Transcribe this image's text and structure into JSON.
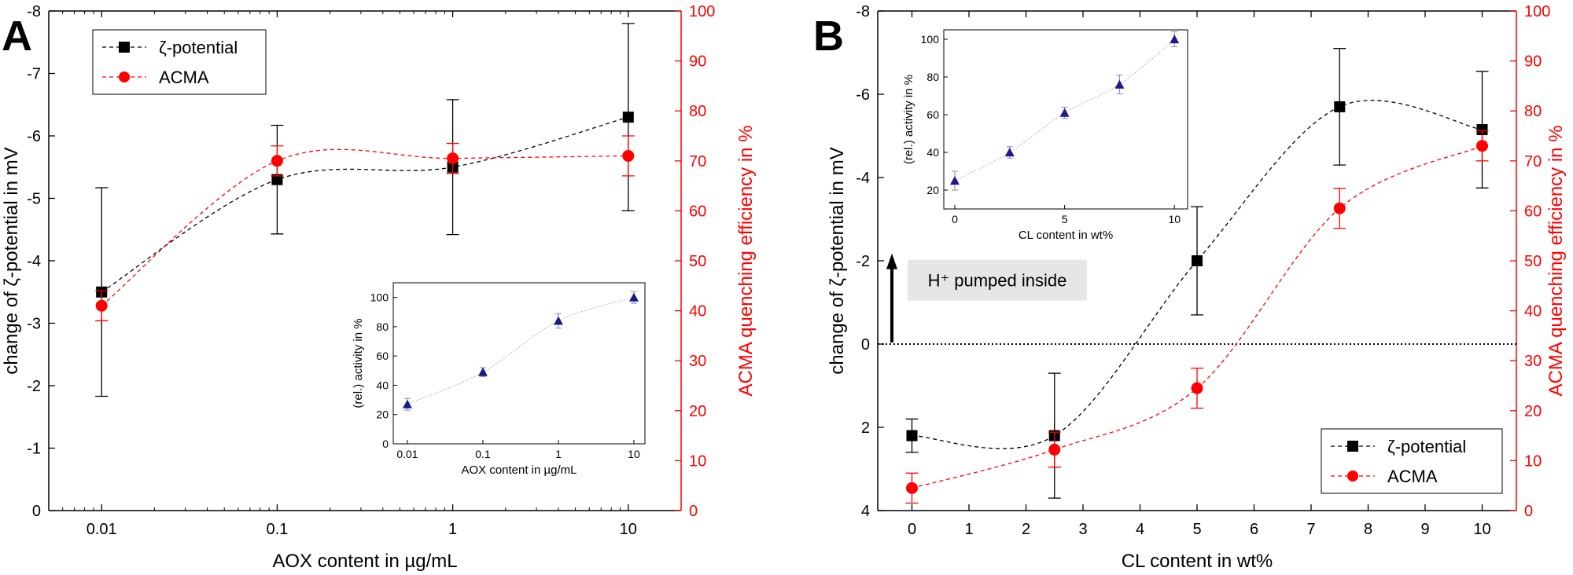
{
  "colors": {
    "zeta": "#000000",
    "acma": "#ff0000",
    "inset": "#1a1a8c",
    "arrow_box": "#e6e6e6"
  },
  "panels": [
    {
      "id": "A",
      "letter": "A",
      "xlabel": "AOX content in µg/mL",
      "y1label": "change of ζ-potential in mV",
      "y2label": "ACMA quenching efficiency in %",
      "legend": {
        "position": "top-left",
        "zeta_label": "ζ-potential",
        "acma_label": "ACMA"
      }
    },
    {
      "id": "B",
      "letter": "B",
      "xlabel": "CL content in wt%",
      "y1label": "change of ζ-potential in mV",
      "y2label": "ACMA quenching efficiency in %",
      "legend": {
        "position": "bottom-right",
        "zeta_label": "ζ-potential",
        "acma_label": "ACMA"
      },
      "annotation": "H⁺ pumped inside"
    }
  ],
  "chart_data": [
    {
      "panel": "A",
      "type": "scatter",
      "x_scale": "log",
      "xlim": [
        0.005,
        20
      ],
      "xticks": [
        "0.01",
        "0.1",
        "1",
        "10"
      ],
      "y1lim": [
        0,
        -8
      ],
      "y1ticks": [
        "0",
        "-1",
        "-2",
        "-3",
        "-4",
        "-5",
        "-6",
        "-7",
        "-8"
      ],
      "y2lim": [
        0,
        100
      ],
      "y2ticks": [
        "0",
        "10",
        "20",
        "30",
        "40",
        "50",
        "60",
        "70",
        "80",
        "90",
        "100"
      ],
      "series": [
        {
          "name": "ζ-potential",
          "axis": "left",
          "marker": "square",
          "x": [
            0.01,
            0.1,
            1,
            10
          ],
          "y": [
            -3.5,
            -5.3,
            -5.5,
            -6.3
          ],
          "err": [
            1.67,
            0.87,
            1.08,
            1.5
          ]
        },
        {
          "name": "ACMA",
          "axis": "right",
          "marker": "circle",
          "x": [
            0.01,
            0.1,
            1,
            10
          ],
          "y": [
            41,
            70,
            70.5,
            71
          ],
          "err": [
            3,
            3,
            3,
            4
          ]
        }
      ],
      "inset": {
        "xlabel": "AOX content in µg/mL",
        "ylabel": "(rel.) activity in %",
        "x_scale": "log",
        "xticks": [
          "0.01",
          "0.1",
          "1",
          "10"
        ],
        "yticks": [
          "0",
          "20",
          "40",
          "60",
          "80",
          "100"
        ],
        "ylim": [
          0,
          110
        ],
        "x": [
          0.01,
          0.1,
          1,
          10
        ],
        "y": [
          27,
          49,
          84,
          100
        ],
        "err": [
          4,
          3,
          5,
          4
        ]
      }
    },
    {
      "panel": "B",
      "type": "scatter",
      "x_scale": "linear",
      "xlim": [
        -0.6,
        10.6
      ],
      "xticks": [
        "0",
        "1",
        "2",
        "3",
        "4",
        "5",
        "6",
        "7",
        "8",
        "9",
        "10"
      ],
      "y1lim": [
        4,
        -8
      ],
      "y1ticks": [
        "4",
        "2",
        "0",
        "-2",
        "-4",
        "-6",
        "-8"
      ],
      "y2lim": [
        0,
        100
      ],
      "y2ticks": [
        "0",
        "10",
        "20",
        "30",
        "40",
        "50",
        "60",
        "70",
        "80",
        "90",
        "100"
      ],
      "series": [
        {
          "name": "ζ-potential",
          "axis": "left",
          "marker": "square",
          "x": [
            0,
            2.5,
            5,
            7.5,
            10
          ],
          "y": [
            2.2,
            2.2,
            -2.0,
            -5.7,
            -5.15
          ],
          "err": [
            0.4,
            1.5,
            1.3,
            1.4,
            1.4
          ]
        },
        {
          "name": "ACMA",
          "axis": "right",
          "marker": "circle",
          "x": [
            0,
            2.5,
            5,
            7.5,
            10
          ],
          "y": [
            4.5,
            12.2,
            24.5,
            60.5,
            73
          ],
          "err": [
            3,
            3.5,
            4,
            4,
            3
          ]
        }
      ],
      "inset": {
        "xlabel": "CL content in wt%",
        "ylabel": "(rel.) activity in %",
        "x_scale": "linear",
        "xticks": [
          "0",
          "5",
          "10"
        ],
        "yticks": [
          "20",
          "40",
          "60",
          "80",
          "100"
        ],
        "ylim": [
          10,
          105
        ],
        "x": [
          0,
          2.5,
          5,
          7.5,
          10
        ],
        "y": [
          25,
          40,
          61,
          76,
          100
        ],
        "err": [
          5,
          3,
          3,
          5,
          4
        ]
      }
    }
  ]
}
